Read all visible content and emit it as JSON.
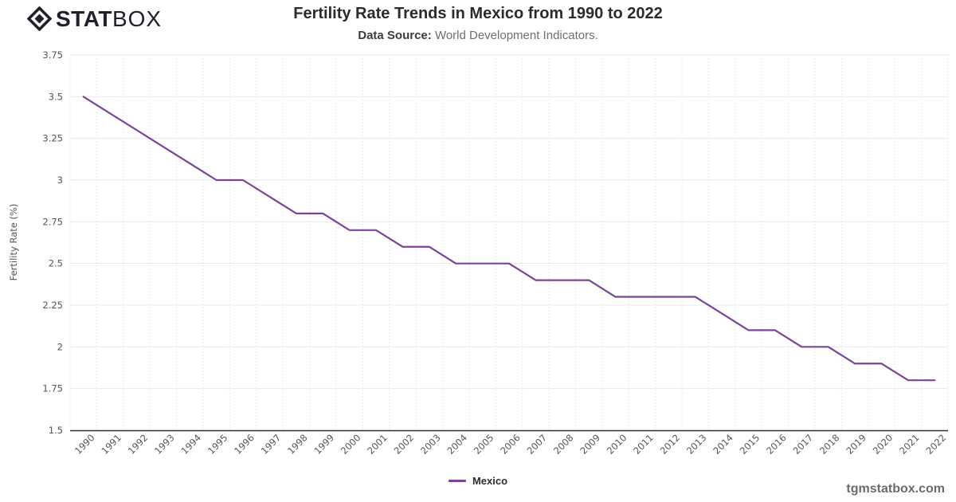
{
  "brand": {
    "stat": "STAT",
    "box": "BOX"
  },
  "header": {
    "title": "Fertility Rate Trends in Mexico from 1990 to 2022",
    "data_source_label": "Data Source:",
    "data_source_value": "World Development Indicators."
  },
  "legend": {
    "items": [
      {
        "label": "Mexico",
        "color": "#7a4598"
      }
    ]
  },
  "footer": {
    "site": "tgmstatbox.com"
  },
  "chart_data": {
    "type": "line",
    "title": "Fertility Rate Trends in Mexico from 1990 to 2022",
    "subtitle": "Data Source: World Development Indicators.",
    "xlabel": "",
    "ylabel": "Fertility Rate (%)",
    "x": [
      1990,
      1991,
      1992,
      1993,
      1994,
      1995,
      1996,
      1997,
      1998,
      1999,
      2000,
      2001,
      2002,
      2003,
      2004,
      2005,
      2006,
      2007,
      2008,
      2009,
      2010,
      2011,
      2012,
      2013,
      2014,
      2015,
      2016,
      2017,
      2018,
      2019,
      2020,
      2021,
      2022
    ],
    "series": [
      {
        "name": "Mexico",
        "color": "#7a4598",
        "values": [
          3.5,
          3.4,
          3.3,
          3.2,
          3.1,
          3.0,
          3.0,
          2.9,
          2.8,
          2.8,
          2.7,
          2.7,
          2.6,
          2.6,
          2.5,
          2.5,
          2.5,
          2.4,
          2.4,
          2.4,
          2.3,
          2.3,
          2.3,
          2.3,
          2.2,
          2.1,
          2.1,
          2.0,
          2.0,
          1.9,
          1.9,
          1.8,
          1.8
        ]
      }
    ],
    "ylim": [
      1.5,
      3.75
    ],
    "yticks": [
      1.5,
      1.75,
      2,
      2.25,
      2.5,
      2.75,
      3,
      3.25,
      3.5,
      3.75
    ],
    "grid": true,
    "legend_position": "bottom"
  }
}
